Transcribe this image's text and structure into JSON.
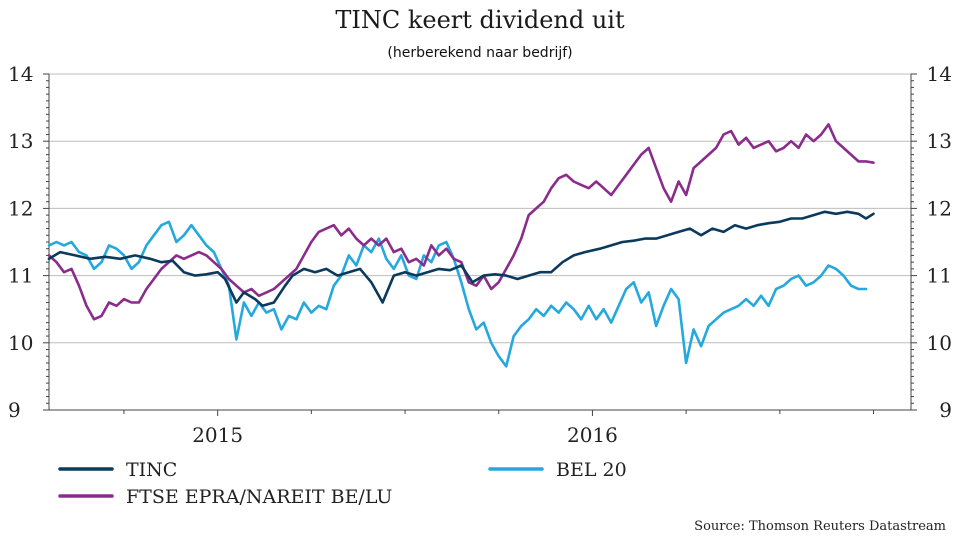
{
  "chart_data": {
    "type": "line",
    "title": "TINC keert dividend uit",
    "subtitle": "(herberekend naar bedrijf)",
    "source": "Source: Thomson Reuters Datastream",
    "ylim": [
      9,
      14
    ],
    "yticks": [
      9,
      10,
      11,
      12,
      13,
      14
    ],
    "xlim": [
      2014.55,
      2016.85
    ],
    "xtick_labels": [
      {
        "label": "2015",
        "x": 2015.0
      },
      {
        "label": "2016",
        "x": 2016.0
      }
    ],
    "grid": true,
    "legend_position": "bottom",
    "series": [
      {
        "name": "TINC",
        "color": "#0b3a5c",
        "points": [
          [
            2014.55,
            11.25
          ],
          [
            2014.58,
            11.35
          ],
          [
            2014.62,
            11.3
          ],
          [
            2014.66,
            11.25
          ],
          [
            2014.7,
            11.28
          ],
          [
            2014.74,
            11.25
          ],
          [
            2014.78,
            11.3
          ],
          [
            2014.82,
            11.25
          ],
          [
            2014.85,
            11.2
          ],
          [
            2014.88,
            11.22
          ],
          [
            2014.91,
            11.05
          ],
          [
            2014.94,
            11.0
          ],
          [
            2014.97,
            11.02
          ],
          [
            2015.0,
            11.05
          ],
          [
            2015.02,
            10.95
          ],
          [
            2015.05,
            10.6
          ],
          [
            2015.07,
            10.75
          ],
          [
            2015.1,
            10.65
          ],
          [
            2015.12,
            10.55
          ],
          [
            2015.15,
            10.6
          ],
          [
            2015.18,
            10.85
          ],
          [
            2015.2,
            11.0
          ],
          [
            2015.23,
            11.1
          ],
          [
            2015.26,
            11.05
          ],
          [
            2015.29,
            11.1
          ],
          [
            2015.32,
            11.0
          ],
          [
            2015.35,
            11.05
          ],
          [
            2015.38,
            11.1
          ],
          [
            2015.41,
            10.9
          ],
          [
            2015.44,
            10.6
          ],
          [
            2015.47,
            11.0
          ],
          [
            2015.5,
            11.05
          ],
          [
            2015.53,
            11.0
          ],
          [
            2015.56,
            11.05
          ],
          [
            2015.59,
            11.1
          ],
          [
            2015.62,
            11.08
          ],
          [
            2015.65,
            11.15
          ],
          [
            2015.68,
            10.9
          ],
          [
            2015.71,
            11.0
          ],
          [
            2015.74,
            11.02
          ],
          [
            2015.77,
            11.0
          ],
          [
            2015.8,
            10.95
          ],
          [
            2015.83,
            11.0
          ],
          [
            2015.86,
            11.05
          ],
          [
            2015.89,
            11.05
          ],
          [
            2015.92,
            11.2
          ],
          [
            2015.95,
            11.3
          ],
          [
            2015.98,
            11.35
          ],
          [
            2016.02,
            11.4
          ],
          [
            2016.05,
            11.45
          ],
          [
            2016.08,
            11.5
          ],
          [
            2016.11,
            11.52
          ],
          [
            2016.14,
            11.55
          ],
          [
            2016.17,
            11.55
          ],
          [
            2016.2,
            11.6
          ],
          [
            2016.23,
            11.65
          ],
          [
            2016.26,
            11.7
          ],
          [
            2016.29,
            11.6
          ],
          [
            2016.32,
            11.7
          ],
          [
            2016.35,
            11.65
          ],
          [
            2016.38,
            11.75
          ],
          [
            2016.41,
            11.7
          ],
          [
            2016.44,
            11.75
          ],
          [
            2016.47,
            11.78
          ],
          [
            2016.5,
            11.8
          ],
          [
            2016.53,
            11.85
          ],
          [
            2016.56,
            11.85
          ],
          [
            2016.59,
            11.9
          ],
          [
            2016.62,
            11.95
          ],
          [
            2016.65,
            11.92
          ],
          [
            2016.68,
            11.95
          ],
          [
            2016.71,
            11.92
          ],
          [
            2016.73,
            11.85
          ],
          [
            2016.75,
            11.92
          ]
        ]
      },
      {
        "name": "FTSE EPRA/NAREIT BE/LU",
        "color": "#8b2c8d",
        "points": [
          [
            2014.55,
            11.3
          ],
          [
            2014.57,
            11.2
          ],
          [
            2014.59,
            11.05
          ],
          [
            2014.61,
            11.1
          ],
          [
            2014.63,
            10.85
          ],
          [
            2014.65,
            10.55
          ],
          [
            2014.67,
            10.35
          ],
          [
            2014.69,
            10.4
          ],
          [
            2014.71,
            10.6
          ],
          [
            2014.73,
            10.55
          ],
          [
            2014.75,
            10.65
          ],
          [
            2014.77,
            10.6
          ],
          [
            2014.79,
            10.6
          ],
          [
            2014.81,
            10.8
          ],
          [
            2014.83,
            10.95
          ],
          [
            2014.85,
            11.1
          ],
          [
            2014.87,
            11.2
          ],
          [
            2014.89,
            11.3
          ],
          [
            2014.91,
            11.25
          ],
          [
            2014.93,
            11.3
          ],
          [
            2014.95,
            11.35
          ],
          [
            2014.97,
            11.3
          ],
          [
            2014.99,
            11.2
          ],
          [
            2015.01,
            11.1
          ],
          [
            2015.03,
            10.95
          ],
          [
            2015.05,
            10.85
          ],
          [
            2015.07,
            10.75
          ],
          [
            2015.09,
            10.8
          ],
          [
            2015.11,
            10.7
          ],
          [
            2015.13,
            10.75
          ],
          [
            2015.15,
            10.8
          ],
          [
            2015.17,
            10.9
          ],
          [
            2015.19,
            11.0
          ],
          [
            2015.21,
            11.1
          ],
          [
            2015.23,
            11.3
          ],
          [
            2015.25,
            11.5
          ],
          [
            2015.27,
            11.65
          ],
          [
            2015.29,
            11.7
          ],
          [
            2015.31,
            11.75
          ],
          [
            2015.33,
            11.6
          ],
          [
            2015.35,
            11.7
          ],
          [
            2015.37,
            11.55
          ],
          [
            2015.39,
            11.45
          ],
          [
            2015.41,
            11.55
          ],
          [
            2015.43,
            11.45
          ],
          [
            2015.45,
            11.55
          ],
          [
            2015.47,
            11.35
          ],
          [
            2015.49,
            11.4
          ],
          [
            2015.51,
            11.2
          ],
          [
            2015.53,
            11.25
          ],
          [
            2015.55,
            11.15
          ],
          [
            2015.57,
            11.45
          ],
          [
            2015.59,
            11.3
          ],
          [
            2015.61,
            11.4
          ],
          [
            2015.63,
            11.25
          ],
          [
            2015.65,
            11.2
          ],
          [
            2015.67,
            10.9
          ],
          [
            2015.69,
            10.85
          ],
          [
            2015.71,
            11.0
          ],
          [
            2015.73,
            10.8
          ],
          [
            2015.75,
            10.9
          ],
          [
            2015.77,
            11.1
          ],
          [
            2015.79,
            11.3
          ],
          [
            2015.81,
            11.55
          ],
          [
            2015.83,
            11.9
          ],
          [
            2015.85,
            12.0
          ],
          [
            2015.87,
            12.1
          ],
          [
            2015.89,
            12.3
          ],
          [
            2015.91,
            12.45
          ],
          [
            2015.93,
            12.5
          ],
          [
            2015.95,
            12.4
          ],
          [
            2015.97,
            12.35
          ],
          [
            2015.99,
            12.3
          ],
          [
            2016.01,
            12.4
          ],
          [
            2016.03,
            12.3
          ],
          [
            2016.05,
            12.2
          ],
          [
            2016.07,
            12.35
          ],
          [
            2016.09,
            12.5
          ],
          [
            2016.11,
            12.65
          ],
          [
            2016.13,
            12.8
          ],
          [
            2016.15,
            12.9
          ],
          [
            2016.17,
            12.6
          ],
          [
            2016.19,
            12.3
          ],
          [
            2016.21,
            12.1
          ],
          [
            2016.23,
            12.4
          ],
          [
            2016.25,
            12.2
          ],
          [
            2016.27,
            12.6
          ],
          [
            2016.29,
            12.7
          ],
          [
            2016.31,
            12.8
          ],
          [
            2016.33,
            12.9
          ],
          [
            2016.35,
            13.1
          ],
          [
            2016.37,
            13.15
          ],
          [
            2016.39,
            12.95
          ],
          [
            2016.41,
            13.05
          ],
          [
            2016.43,
            12.9
          ],
          [
            2016.45,
            12.95
          ],
          [
            2016.47,
            13.0
          ],
          [
            2016.49,
            12.85
          ],
          [
            2016.51,
            12.9
          ],
          [
            2016.53,
            13.0
          ],
          [
            2016.55,
            12.9
          ],
          [
            2016.57,
            13.1
          ],
          [
            2016.59,
            13.0
          ],
          [
            2016.61,
            13.1
          ],
          [
            2016.63,
            13.25
          ],
          [
            2016.65,
            13.0
          ],
          [
            2016.67,
            12.9
          ],
          [
            2016.69,
            12.8
          ],
          [
            2016.71,
            12.7
          ],
          [
            2016.73,
            12.7
          ],
          [
            2016.75,
            12.68
          ]
        ]
      },
      {
        "name": "BEL 20",
        "color": "#25a8de",
        "points": [
          [
            2014.55,
            11.45
          ],
          [
            2014.57,
            11.5
          ],
          [
            2014.59,
            11.45
          ],
          [
            2014.61,
            11.5
          ],
          [
            2014.63,
            11.35
          ],
          [
            2014.65,
            11.3
          ],
          [
            2014.67,
            11.1
          ],
          [
            2014.69,
            11.2
          ],
          [
            2014.71,
            11.45
          ],
          [
            2014.73,
            11.4
          ],
          [
            2014.75,
            11.3
          ],
          [
            2014.77,
            11.1
          ],
          [
            2014.79,
            11.2
          ],
          [
            2014.81,
            11.45
          ],
          [
            2014.83,
            11.6
          ],
          [
            2014.85,
            11.75
          ],
          [
            2014.87,
            11.8
          ],
          [
            2014.89,
            11.5
          ],
          [
            2014.91,
            11.6
          ],
          [
            2014.93,
            11.75
          ],
          [
            2014.95,
            11.6
          ],
          [
            2014.97,
            11.45
          ],
          [
            2014.99,
            11.35
          ],
          [
            2015.01,
            11.1
          ],
          [
            2015.03,
            10.85
          ],
          [
            2015.05,
            10.05
          ],
          [
            2015.07,
            10.6
          ],
          [
            2015.09,
            10.4
          ],
          [
            2015.11,
            10.6
          ],
          [
            2015.13,
            10.45
          ],
          [
            2015.15,
            10.5
          ],
          [
            2015.17,
            10.2
          ],
          [
            2015.19,
            10.4
          ],
          [
            2015.21,
            10.35
          ],
          [
            2015.23,
            10.6
          ],
          [
            2015.25,
            10.45
          ],
          [
            2015.27,
            10.55
          ],
          [
            2015.29,
            10.5
          ],
          [
            2015.31,
            10.85
          ],
          [
            2015.33,
            11.0
          ],
          [
            2015.35,
            11.3
          ],
          [
            2015.37,
            11.15
          ],
          [
            2015.39,
            11.45
          ],
          [
            2015.41,
            11.35
          ],
          [
            2015.43,
            11.55
          ],
          [
            2015.45,
            11.25
          ],
          [
            2015.47,
            11.1
          ],
          [
            2015.49,
            11.3
          ],
          [
            2015.51,
            11.0
          ],
          [
            2015.53,
            10.95
          ],
          [
            2015.55,
            11.3
          ],
          [
            2015.57,
            11.2
          ],
          [
            2015.59,
            11.45
          ],
          [
            2015.61,
            11.5
          ],
          [
            2015.63,
            11.25
          ],
          [
            2015.65,
            10.9
          ],
          [
            2015.67,
            10.5
          ],
          [
            2015.69,
            10.2
          ],
          [
            2015.71,
            10.3
          ],
          [
            2015.73,
            10.0
          ],
          [
            2015.75,
            9.8
          ],
          [
            2015.77,
            9.65
          ],
          [
            2015.79,
            10.1
          ],
          [
            2015.81,
            10.25
          ],
          [
            2015.83,
            10.35
          ],
          [
            2015.85,
            10.5
          ],
          [
            2015.87,
            10.4
          ],
          [
            2015.89,
            10.55
          ],
          [
            2015.91,
            10.45
          ],
          [
            2015.93,
            10.6
          ],
          [
            2015.95,
            10.5
          ],
          [
            2015.97,
            10.35
          ],
          [
            2015.99,
            10.55
          ],
          [
            2016.01,
            10.35
          ],
          [
            2016.03,
            10.5
          ],
          [
            2016.05,
            10.3
          ],
          [
            2016.07,
            10.55
          ],
          [
            2016.09,
            10.8
          ],
          [
            2016.11,
            10.9
          ],
          [
            2016.13,
            10.6
          ],
          [
            2016.15,
            10.75
          ],
          [
            2016.17,
            10.25
          ],
          [
            2016.19,
            10.55
          ],
          [
            2016.21,
            10.8
          ],
          [
            2016.23,
            10.65
          ],
          [
            2016.25,
            9.7
          ],
          [
            2016.27,
            10.2
          ],
          [
            2016.29,
            9.95
          ],
          [
            2016.31,
            10.25
          ],
          [
            2016.33,
            10.35
          ],
          [
            2016.35,
            10.45
          ],
          [
            2016.37,
            10.5
          ],
          [
            2016.39,
            10.55
          ],
          [
            2016.41,
            10.65
          ],
          [
            2016.43,
            10.55
          ],
          [
            2016.45,
            10.7
          ],
          [
            2016.47,
            10.55
          ],
          [
            2016.49,
            10.8
          ],
          [
            2016.51,
            10.85
          ],
          [
            2016.53,
            10.95
          ],
          [
            2016.55,
            11.0
          ],
          [
            2016.57,
            10.85
          ],
          [
            2016.59,
            10.9
          ],
          [
            2016.61,
            11.0
          ],
          [
            2016.63,
            11.15
          ],
          [
            2016.65,
            11.1
          ],
          [
            2016.67,
            11.0
          ],
          [
            2016.69,
            10.85
          ],
          [
            2016.71,
            10.8
          ],
          [
            2016.73,
            10.8
          ]
        ]
      }
    ]
  }
}
